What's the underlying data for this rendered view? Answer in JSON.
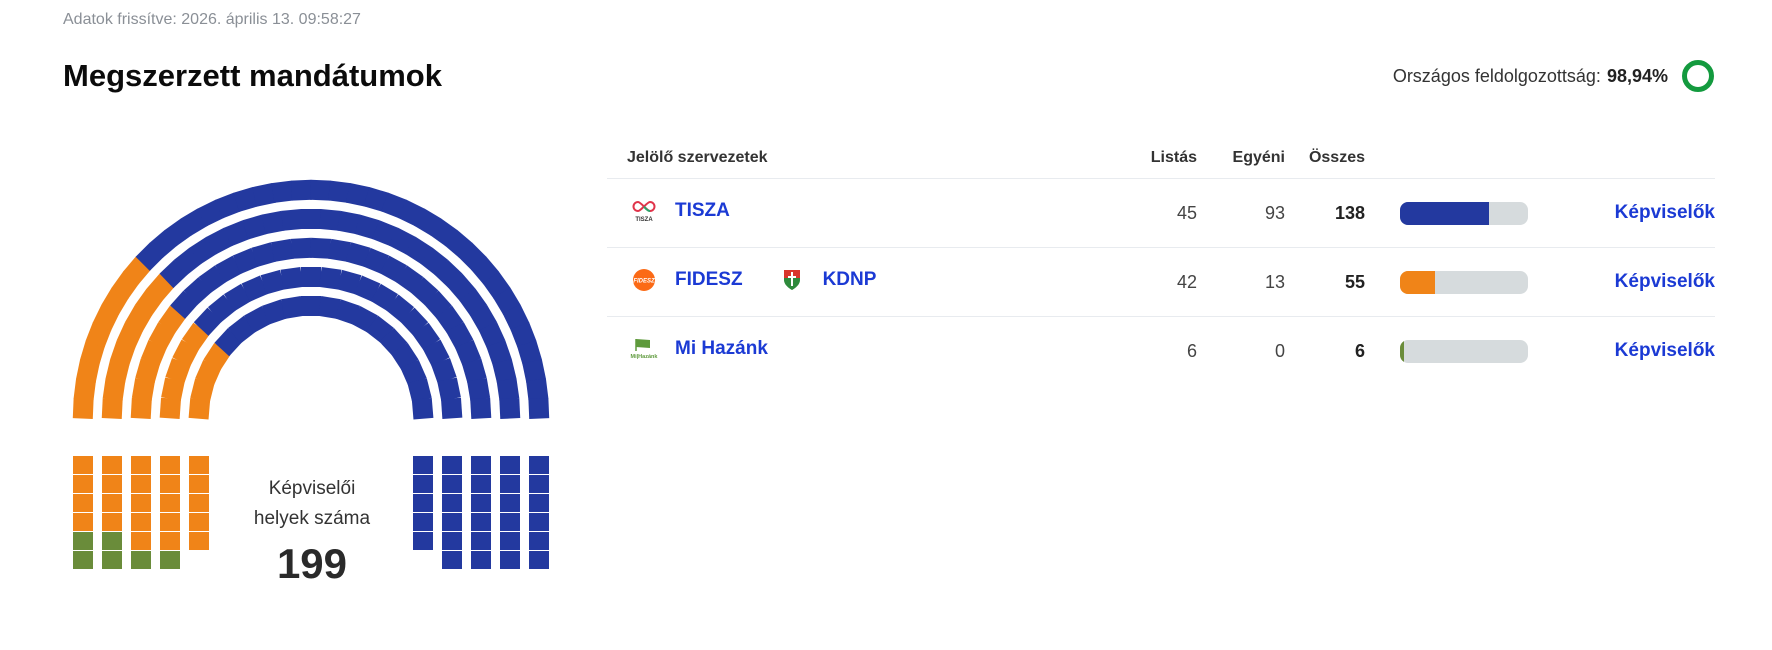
{
  "header": {
    "updated": "Adatok frissítve: 2026. április 13. 09:58:27",
    "title": "Megszerzett mandátumok",
    "progress_label": "Országos feldolgozottság:",
    "progress_value": "98,94%",
    "progress_percent": 98.94,
    "progress_color": "#139a3e"
  },
  "hemicycle": {
    "label_line1": "Képviselői",
    "label_line2": "helyek száma",
    "total": "199",
    "arc_seats": [
      {
        "party": "FIDESZ",
        "count": 32,
        "color": "#f08418"
      },
      {
        "party": "TISZA",
        "count": 109,
        "color": "#23399f"
      }
    ],
    "left_grid_columns": [
      [
        "orange",
        "orange",
        "orange",
        "orange",
        "green",
        "green"
      ],
      [
        "orange",
        "orange",
        "orange",
        "orange",
        "green",
        "green"
      ],
      [
        "orange",
        "orange",
        "orange",
        "orange",
        "orange",
        "green"
      ],
      [
        "orange",
        "orange",
        "orange",
        "orange",
        "orange",
        "green"
      ],
      [
        "orange",
        "orange",
        "orange",
        "orange",
        "orange"
      ]
    ],
    "right_grid_columns": [
      [
        "blue",
        "blue",
        "blue",
        "blue",
        "blue"
      ],
      [
        "blue",
        "blue",
        "blue",
        "blue",
        "blue",
        "blue"
      ],
      [
        "blue",
        "blue",
        "blue",
        "blue",
        "blue",
        "blue"
      ],
      [
        "blue",
        "blue",
        "blue",
        "blue",
        "blue",
        "blue"
      ],
      [
        "blue",
        "blue",
        "blue",
        "blue",
        "blue",
        "blue"
      ]
    ],
    "colors": {
      "orange": "#f08418",
      "green": "#6a8c3a",
      "blue": "#23399f"
    }
  },
  "table": {
    "headers": {
      "org": "Jelölő szervezetek",
      "list": "Listás",
      "individual": "Egyéni",
      "total": "Összes"
    },
    "rows": [
      {
        "parties": [
          {
            "name": "TISZA",
            "logo": "tisza-logo-icon"
          }
        ],
        "list": "45",
        "individual": "93",
        "total": "138",
        "share": 69.3,
        "color": "#23399f",
        "link": "Képviselők"
      },
      {
        "parties": [
          {
            "name": "FIDESZ",
            "logo": "fidesz-logo-icon"
          },
          {
            "name": "KDNP",
            "logo": "kdnp-logo-icon"
          }
        ],
        "list": "42",
        "individual": "13",
        "total": "55",
        "share": 27.6,
        "color": "#f08418",
        "link": "Képviselők"
      },
      {
        "parties": [
          {
            "name": "Mi Hazánk",
            "logo": "mi-hazank-logo-icon"
          }
        ],
        "list": "6",
        "individual": "0",
        "total": "6",
        "share": 3.0,
        "color": "#6a8c3a",
        "link": "Képviselők"
      }
    ],
    "bar_background": "#d6dbdd",
    "link_color": "#1b3ad4"
  }
}
